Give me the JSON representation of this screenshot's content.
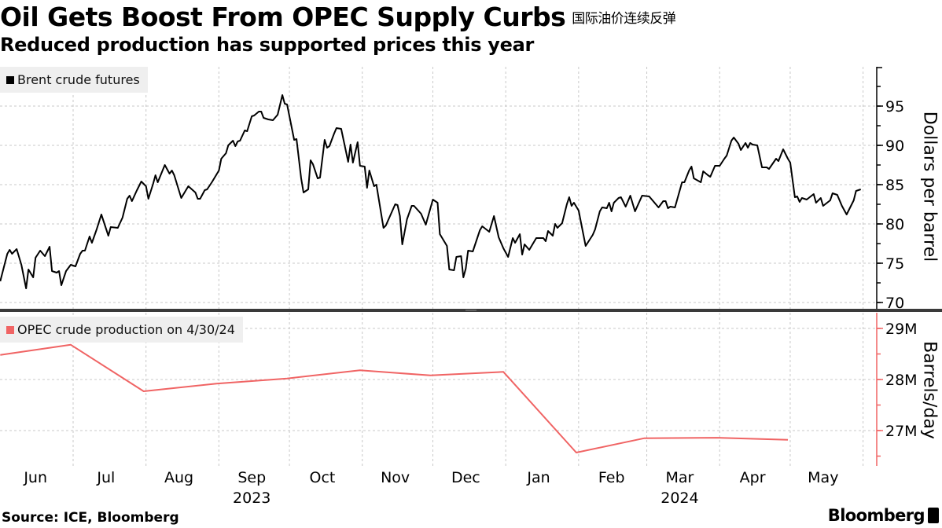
{
  "header": {
    "title": "Oil Gets Boost From OPEC Supply Curbs",
    "title_cn": "国际油价连续反弹",
    "subtitle": "Reduced production has supported prices this year"
  },
  "footer": {
    "source": "Source: ICE, Bloomberg",
    "logo": "Bloomberg"
  },
  "chart_data": [
    {
      "type": "line",
      "legend": "Brent crude futures",
      "legend_position": "top-left",
      "ylabel": "Dollars per barrel",
      "ylim": [
        69,
        100
      ],
      "yticks": [
        70,
        75,
        80,
        85,
        90,
        95
      ],
      "grid": true,
      "color": "#000000",
      "x_months": [
        "Jun",
        "Jul",
        "Aug",
        "Sep",
        "Oct",
        "Nov",
        "Dec",
        "Jan",
        "Feb",
        "Mar",
        "Apr",
        "May"
      ],
      "x_years": [
        "2023",
        "2024"
      ],
      "series": [
        {
          "points": [
            [
              "2023-05-31",
              72.7
            ],
            [
              "2023-06-03",
              76.2
            ],
            [
              "2023-06-04",
              76.7
            ],
            [
              "2023-06-05",
              76.2
            ],
            [
              "2023-06-07",
              76.8
            ],
            [
              "2023-06-09",
              74.8
            ],
            [
              "2023-06-11",
              71.8
            ],
            [
              "2023-06-12",
              74.2
            ],
            [
              "2023-06-14",
              73.2
            ],
            [
              "2023-06-15",
              75.7
            ],
            [
              "2023-06-17",
              76.6
            ],
            [
              "2023-06-19",
              75.9
            ],
            [
              "2023-06-21",
              77.1
            ],
            [
              "2023-06-22",
              74.0
            ],
            [
              "2023-06-24",
              73.8
            ],
            [
              "2023-06-25",
              74.0
            ],
            [
              "2023-06-26",
              72.2
            ],
            [
              "2023-06-28",
              74.0
            ],
            [
              "2023-06-30",
              74.8
            ],
            [
              "2023-07-02",
              74.6
            ],
            [
              "2023-07-04",
              76.2
            ],
            [
              "2023-07-05",
              76.6
            ],
            [
              "2023-07-06",
              76.6
            ],
            [
              "2023-07-08",
              78.4
            ],
            [
              "2023-07-09",
              77.6
            ],
            [
              "2023-07-11",
              79.3
            ],
            [
              "2023-07-13",
              81.2
            ],
            [
              "2023-07-16",
              78.5
            ],
            [
              "2023-07-17",
              79.6
            ],
            [
              "2023-07-20",
              79.5
            ],
            [
              "2023-07-22",
              80.8
            ],
            [
              "2023-07-24",
              83.2
            ],
            [
              "2023-07-25",
              83.6
            ],
            [
              "2023-07-26",
              82.9
            ],
            [
              "2023-07-28",
              84.2
            ],
            [
              "2023-07-30",
              85.4
            ],
            [
              "2023-08-01",
              84.8
            ],
            [
              "2023-08-02",
              83.2
            ],
            [
              "2023-08-04",
              85.1
            ],
            [
              "2023-08-05",
              86.2
            ],
            [
              "2023-08-06",
              85.3
            ],
            [
              "2023-08-09",
              87.5
            ],
            [
              "2023-08-11",
              86.4
            ],
            [
              "2023-08-12",
              86.8
            ],
            [
              "2023-08-13",
              86.2
            ],
            [
              "2023-08-16",
              83.3
            ],
            [
              "2023-08-19",
              84.8
            ],
            [
              "2023-08-22",
              84.0
            ],
            [
              "2023-08-23",
              83.2
            ],
            [
              "2023-08-24",
              83.2
            ],
            [
              "2023-08-26",
              84.3
            ],
            [
              "2023-08-27",
              84.4
            ],
            [
              "2023-08-29",
              85.3
            ],
            [
              "2023-08-30",
              85.8
            ],
            [
              "2023-09-01",
              86.8
            ],
            [
              "2023-09-02",
              88.3
            ],
            [
              "2023-09-04",
              89.0
            ],
            [
              "2023-09-05",
              90.0
            ],
            [
              "2023-09-07",
              90.6
            ],
            [
              "2023-09-08",
              89.9
            ],
            [
              "2023-09-09",
              90.5
            ],
            [
              "2023-09-10",
              90.6
            ],
            [
              "2023-09-12",
              91.9
            ],
            [
              "2023-09-13",
              91.8
            ],
            [
              "2023-09-15",
              93.7
            ],
            [
              "2023-09-16",
              93.8
            ],
            [
              "2023-09-18",
              94.3
            ],
            [
              "2023-09-19",
              94.3
            ],
            [
              "2023-09-20",
              93.5
            ],
            [
              "2023-09-22",
              93.3
            ],
            [
              "2023-09-24",
              93.2
            ],
            [
              "2023-09-26",
              93.9
            ],
            [
              "2023-09-28",
              96.4
            ],
            [
              "2023-09-29",
              95.3
            ],
            [
              "2023-09-30",
              95.2
            ],
            [
              "2023-10-03",
              90.7
            ],
            [
              "2023-10-04",
              90.8
            ],
            [
              "2023-10-06",
              85.8
            ],
            [
              "2023-10-07",
              84.0
            ],
            [
              "2023-10-09",
              84.4
            ],
            [
              "2023-10-10",
              88.1
            ],
            [
              "2023-10-11",
              87.6
            ],
            [
              "2023-10-13",
              85.8
            ],
            [
              "2023-10-14",
              85.9
            ],
            [
              "2023-10-16",
              90.7
            ],
            [
              "2023-10-17",
              89.7
            ],
            [
              "2023-10-18",
              89.9
            ],
            [
              "2023-10-20",
              91.5
            ],
            [
              "2023-10-21",
              92.2
            ],
            [
              "2023-10-23",
              92.1
            ],
            [
              "2023-10-26",
              87.9
            ],
            [
              "2023-10-27",
              90.1
            ],
            [
              "2023-10-28",
              87.8
            ],
            [
              "2023-10-30",
              90.4
            ],
            [
              "2023-10-31",
              87.4
            ],
            [
              "2023-11-02",
              87.3
            ],
            [
              "2023-11-03",
              84.6
            ],
            [
              "2023-11-04",
              86.8
            ],
            [
              "2023-11-06",
              84.8
            ],
            [
              "2023-11-07",
              85.0
            ],
            [
              "2023-11-10",
              79.5
            ],
            [
              "2023-11-11",
              79.8
            ],
            [
              "2023-11-15",
              82.5
            ],
            [
              "2023-11-16",
              82.4
            ],
            [
              "2023-11-17",
              81.0
            ],
            [
              "2023-11-18",
              77.4
            ],
            [
              "2023-11-20",
              80.6
            ],
            [
              "2023-11-22",
              82.3
            ],
            [
              "2023-11-23",
              82.3
            ],
            [
              "2023-11-26",
              81.3
            ],
            [
              "2023-11-28",
              79.9
            ],
            [
              "2023-12-01",
              83.1
            ],
            [
              "2023-12-03",
              82.7
            ],
            [
              "2023-12-04",
              78.7
            ],
            [
              "2023-12-07",
              77.2
            ],
            [
              "2023-12-08",
              74.2
            ],
            [
              "2023-12-10",
              74.1
            ],
            [
              "2023-12-11",
              75.8
            ],
            [
              "2023-12-13",
              75.9
            ],
            [
              "2023-12-14",
              73.2
            ],
            [
              "2023-12-15",
              74.3
            ],
            [
              "2023-12-16",
              76.6
            ],
            [
              "2023-12-18",
              76.5
            ],
            [
              "2023-12-21",
              79.2
            ],
            [
              "2023-12-22",
              79.7
            ],
            [
              "2023-12-25",
              79.0
            ],
            [
              "2023-12-27",
              81.0
            ],
            [
              "2023-12-29",
              78.3
            ],
            [
              "2023-12-31",
              76.9
            ],
            [
              "2024-01-02",
              75.8
            ],
            [
              "2024-01-04",
              78.2
            ],
            [
              "2024-01-05",
              77.6
            ],
            [
              "2024-01-07",
              78.7
            ],
            [
              "2024-01-08",
              76.1
            ],
            [
              "2024-01-09",
              77.4
            ],
            [
              "2024-01-11",
              76.7
            ],
            [
              "2024-01-14",
              78.2
            ],
            [
              "2024-01-17",
              78.2
            ],
            [
              "2024-01-18",
              77.8
            ],
            [
              "2024-01-19",
              79.1
            ],
            [
              "2024-01-21",
              78.5
            ],
            [
              "2024-01-22",
              80.0
            ],
            [
              "2024-01-23",
              79.5
            ],
            [
              "2024-01-25",
              80.1
            ],
            [
              "2024-01-27",
              82.5
            ],
            [
              "2024-01-28",
              83.4
            ],
            [
              "2024-01-29",
              82.3
            ],
            [
              "2024-01-30",
              82.7
            ],
            [
              "2024-02-01",
              81.7
            ],
            [
              "2024-02-03",
              78.7
            ],
            [
              "2024-02-04",
              77.2
            ],
            [
              "2024-02-07",
              78.6
            ],
            [
              "2024-02-08",
              79.3
            ],
            [
              "2024-02-10",
              81.6
            ],
            [
              "2024-02-11",
              82.1
            ],
            [
              "2024-02-13",
              82.0
            ],
            [
              "2024-02-14",
              82.7
            ],
            [
              "2024-02-15",
              81.6
            ],
            [
              "2024-02-16",
              82.7
            ],
            [
              "2024-02-18",
              83.3
            ],
            [
              "2024-02-19",
              83.4
            ],
            [
              "2024-02-21",
              82.2
            ],
            [
              "2024-02-23",
              83.6
            ],
            [
              "2024-02-25",
              81.6
            ],
            [
              "2024-02-28",
              83.6
            ],
            [
              "2024-03-02",
              83.5
            ],
            [
              "2024-03-06",
              82.1
            ],
            [
              "2024-03-08",
              82.9
            ],
            [
              "2024-03-09",
              82.9
            ],
            [
              "2024-03-10",
              82.0
            ],
            [
              "2024-03-11",
              82.2
            ],
            [
              "2024-03-13",
              82.1
            ],
            [
              "2024-03-16",
              85.3
            ],
            [
              "2024-03-17",
              85.3
            ],
            [
              "2024-03-19",
              86.8
            ],
            [
              "2024-03-20",
              87.3
            ],
            [
              "2024-03-21",
              85.8
            ],
            [
              "2024-03-24",
              85.3
            ],
            [
              "2024-03-25",
              86.7
            ],
            [
              "2024-03-27",
              86.2
            ],
            [
              "2024-03-28",
              86.0
            ],
            [
              "2024-03-30",
              87.4
            ],
            [
              "2024-04-01",
              87.4
            ],
            [
              "2024-04-03",
              88.3
            ],
            [
              "2024-04-04",
              88.7
            ],
            [
              "2024-04-06",
              90.6
            ],
            [
              "2024-04-07",
              91.0
            ],
            [
              "2024-04-09",
              90.2
            ],
            [
              "2024-04-10",
              89.4
            ],
            [
              "2024-04-12",
              90.3
            ],
            [
              "2024-04-13",
              89.7
            ],
            [
              "2024-04-14",
              90.3
            ],
            [
              "2024-04-15",
              90.1
            ],
            [
              "2024-04-17",
              90.0
            ],
            [
              "2024-04-19",
              87.2
            ],
            [
              "2024-04-21",
              87.2
            ],
            [
              "2024-04-22",
              87.0
            ],
            [
              "2024-04-25",
              88.3
            ],
            [
              "2024-04-26",
              88.0
            ],
            [
              "2024-04-28",
              89.5
            ],
            [
              "2024-04-30",
              88.3
            ],
            [
              "2024-05-01",
              87.8
            ],
            [
              "2024-05-03",
              83.4
            ],
            [
              "2024-05-04",
              83.5
            ],
            [
              "2024-05-05",
              82.8
            ],
            [
              "2024-05-06",
              83.3
            ],
            [
              "2024-05-08",
              83.1
            ],
            [
              "2024-05-11",
              83.8
            ],
            [
              "2024-05-12",
              82.7
            ],
            [
              "2024-05-14",
              83.3
            ],
            [
              "2024-05-15",
              82.3
            ],
            [
              "2024-05-18",
              83.0
            ],
            [
              "2024-05-19",
              83.9
            ],
            [
              "2024-05-21",
              83.7
            ],
            [
              "2024-05-23",
              82.3
            ],
            [
              "2024-05-25",
              81.2
            ],
            [
              "2024-05-28",
              83.0
            ],
            [
              "2024-05-29",
              84.2
            ],
            [
              "2024-05-31",
              84.4
            ]
          ]
        }
      ]
    },
    {
      "type": "line",
      "legend": "OPEC crude production on 4/30/24",
      "legend_position": "top-left",
      "ylabel": "Barrels/day",
      "ylim": [
        26.3,
        29.3
      ],
      "yticks": [
        27,
        28,
        29
      ],
      "ytick_labels": [
        "27M",
        "28M",
        "29M"
      ],
      "grid": true,
      "color": "#f06464",
      "series": [
        {
          "points": [
            [
              "2023-05-31",
              28.48
            ],
            [
              "2023-06-30",
              28.68
            ],
            [
              "2023-07-31",
              27.77
            ],
            [
              "2023-08-31",
              27.92
            ],
            [
              "2023-09-30",
              28.02
            ],
            [
              "2023-10-31",
              28.18
            ],
            [
              "2023-11-30",
              28.08
            ],
            [
              "2023-12-31",
              28.15
            ],
            [
              "2024-01-31",
              26.57
            ],
            [
              "2024-02-29",
              26.85
            ],
            [
              "2024-03-31",
              26.86
            ],
            [
              "2024-04-30",
              26.82
            ]
          ]
        }
      ]
    }
  ]
}
